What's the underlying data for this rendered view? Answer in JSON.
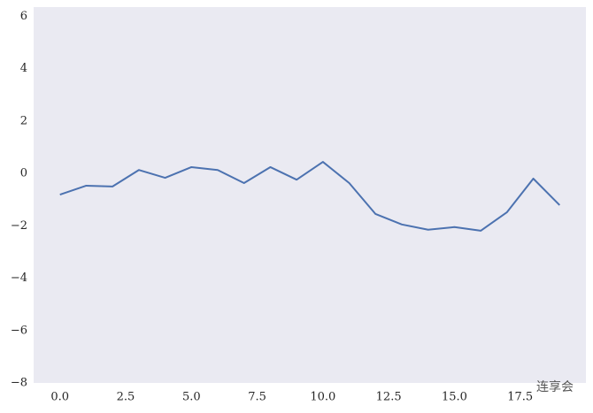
{
  "chart_data": {
    "type": "line",
    "x": [
      0,
      1,
      2,
      3,
      4,
      5,
      6,
      7,
      8,
      9,
      10,
      11,
      12,
      13,
      14,
      15,
      16,
      17,
      18,
      19
    ],
    "series": [
      {
        "color": "#4c72b0",
        "values": [
          -0.81,
          -0.47,
          -0.5,
          0.13,
          -0.17,
          0.24,
          0.13,
          -0.37,
          0.24,
          -0.24,
          0.44,
          -0.37,
          -1.55,
          -1.95,
          -2.15,
          -2.05,
          -2.19,
          -1.48,
          -0.2,
          -1.21
        ]
      }
    ],
    "xlim": [
      -1,
      20
    ],
    "xticks": [
      {
        "value": 0,
        "label": "0.0"
      },
      2.5,
      {
        "value": 5,
        "label": "5.0"
      },
      7.5,
      {
        "value": 10,
        "label": "10.0"
      },
      12.5,
      {
        "value": 15,
        "label": "15.0"
      },
      17.5
    ],
    "ylim": [
      -8,
      6.35
    ],
    "yticks": [
      {
        "value": -8,
        "label": "−8"
      },
      {
        "value": -6,
        "label": "−6"
      },
      {
        "value": -4,
        "label": "−4"
      },
      {
        "value": -2,
        "label": "−2"
      },
      0,
      2,
      4,
      6
    ],
    "background": "#eaeaf2",
    "grid": false,
    "watermark": "连享会"
  }
}
